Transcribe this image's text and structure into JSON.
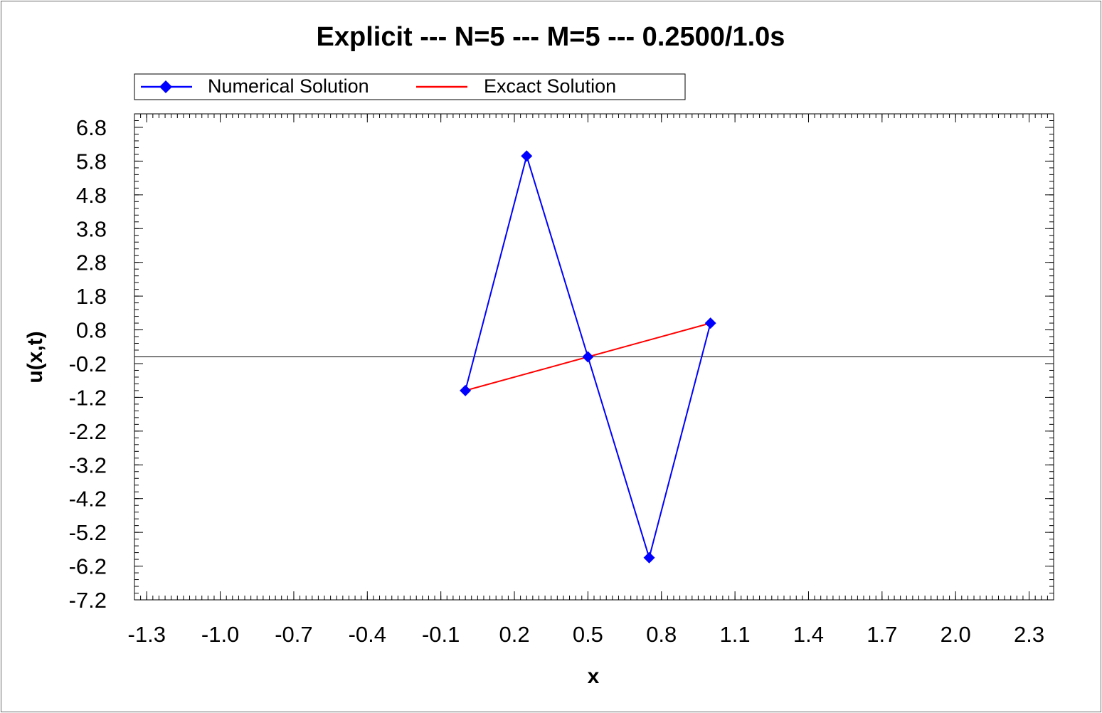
{
  "chart_data": {
    "type": "line",
    "title": "Explicit --- N=5 --- M=5 --- 0.2500/1.0s",
    "xlabel": "x",
    "ylabel": "u(x,t)",
    "xlim": [
      -1.35,
      2.4
    ],
    "ylim": [
      -7.2,
      7.2
    ],
    "x_ticks": [
      "-1.3",
      "-1.0",
      "-0.7",
      "-0.4",
      "-0.1",
      "0.2",
      "0.5",
      "0.8",
      "1.1",
      "1.4",
      "1.7",
      "2.0",
      "2.3"
    ],
    "y_ticks": [
      "6.8",
      "5.8",
      "4.8",
      "3.8",
      "2.8",
      "1.8",
      "0.8",
      "-0.2",
      "-1.2",
      "-2.2",
      "-3.2",
      "-4.2",
      "-5.2",
      "-6.2",
      "-7.2"
    ],
    "grid": false,
    "legend_position": "top",
    "series": [
      {
        "name": "Numerical Solution",
        "color": "#0000ff",
        "marker": "diamond",
        "x": [
          0.0,
          0.25,
          0.5,
          0.75,
          1.0
        ],
        "y": [
          -1.0,
          5.95,
          0.0,
          -5.95,
          1.0
        ]
      },
      {
        "name": "Excact Solution",
        "color": "#ff0000",
        "marker": "none",
        "x": [
          0.0,
          0.25,
          0.5,
          0.75,
          1.0
        ],
        "y": [
          -1.0,
          -0.5,
          0.0,
          0.5,
          1.0
        ]
      }
    ],
    "zero_line": true
  }
}
